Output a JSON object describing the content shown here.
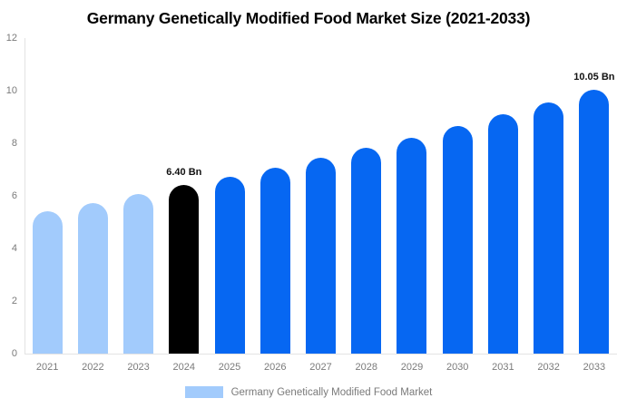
{
  "title": "Germany Genetically Modified Food Market Size (2021-2033)",
  "legend": {
    "label": "Germany Genetically Modified Food Market"
  },
  "colors": {
    "background": "#ffffff",
    "title_text": "#000000",
    "historical_bar": "#a2cbfc",
    "current_bar": "#000000",
    "forecast_bar": "#0667f2",
    "axis_line": "#e3e3e3",
    "tick_text": "#7a7a7a",
    "annotation_text": "#111111",
    "legend_swatch": "#a2cbfc",
    "legend_text": "#7a7a7a"
  },
  "chart_data": {
    "type": "bar",
    "title": "Germany Genetically Modified Food Market Size (2021-2033)",
    "categories": [
      "2021",
      "2022",
      "2023",
      "2024",
      "2025",
      "2026",
      "2027",
      "2028",
      "2029",
      "2030",
      "2031",
      "2032",
      "2033"
    ],
    "values": [
      5.4,
      5.73,
      6.06,
      6.4,
      6.73,
      7.07,
      7.44,
      7.82,
      8.22,
      8.64,
      9.09,
      9.55,
      10.05
    ],
    "unit": "Bn",
    "bar_roles": [
      "historical",
      "historical",
      "historical",
      "current",
      "forecast",
      "forecast",
      "forecast",
      "forecast",
      "forecast",
      "forecast",
      "forecast",
      "forecast",
      "forecast"
    ],
    "annotations": [
      {
        "category": "2024",
        "text": "6.40 Bn"
      },
      {
        "category": "2033",
        "text": "10.05 Bn"
      }
    ],
    "xlabel": "",
    "ylabel": "",
    "ylim": [
      0,
      12
    ],
    "yticks": [
      0,
      2,
      4,
      6,
      8,
      10,
      12
    ],
    "grid": false,
    "legend_entries": [
      "Germany Genetically Modified Food Market"
    ],
    "legend_position": "bottom"
  }
}
